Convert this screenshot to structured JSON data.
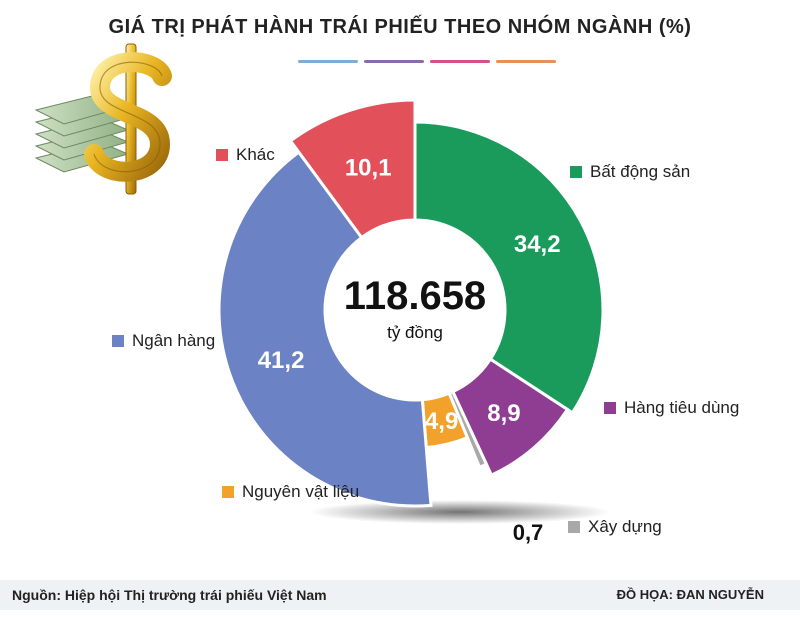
{
  "title": "GIÁ TRỊ PHÁT HÀNH TRÁI PHIẾU THEO NHÓM NGÀNH (%)",
  "title_bar_colors": [
    "#7aaed6",
    "#8a6bb0",
    "#d6508a",
    "#e8905a"
  ],
  "center": {
    "value": "118.658",
    "unit": "tỷ đồng"
  },
  "footer": {
    "source": "Nguồn: Hiệp hội Thị trường trái phiếu Việt Nam",
    "credit": "ĐỒ HỌA: ĐAN NGUYỄN"
  },
  "decor": {
    "icon": "money-dollar-icon"
  },
  "chart_data": {
    "type": "pie",
    "style": "donut",
    "categories": [
      "Bất động sản",
      "Hàng tiêu dùng",
      "Xây dựng",
      "Nguyên vật liệu",
      "Ngân hàng",
      "Khác"
    ],
    "values": [
      34.2,
      8.9,
      0.7,
      4.9,
      41.2,
      10.1
    ],
    "value_labels": [
      "34,2",
      "8,9",
      "0,7",
      "4,9",
      "41,2",
      "10,1"
    ],
    "colors": [
      "#1a9b5c",
      "#8e3d92",
      "#a8a8a8",
      "#f2a22a",
      "#6b82c4",
      "#e2505a"
    ],
    "legend_placement": "around"
  }
}
